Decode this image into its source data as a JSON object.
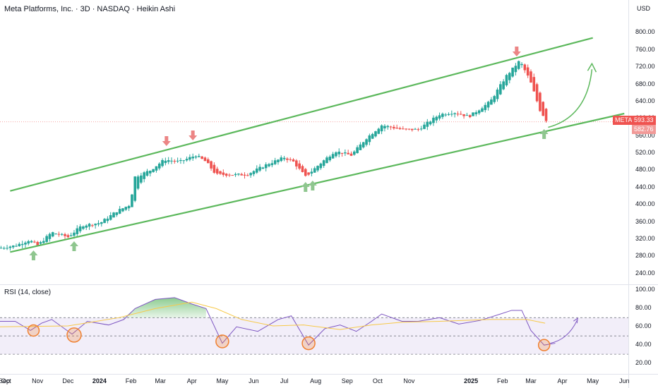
{
  "header": {
    "title": "Meta Platforms, Inc. · 3D · NASDAQ · Heikin Ashi",
    "currency": "USD",
    "rsi_title": "RSI (14, close)"
  },
  "price_tags": {
    "symbol": "META",
    "last": "593.33",
    "low": "582.76"
  },
  "colors": {
    "up": "#26a69a",
    "down": "#ef5350",
    "channel": "#5cb85c",
    "arrow_up": "#8fc68f",
    "arrow_down": "#ec8585",
    "rsi_line": "#7e57c2",
    "rsi_ma": "#f7c948",
    "circle": "#f08030",
    "tag": "#ef5350"
  },
  "icons": [
    "up-arrow-icon",
    "down-arrow-icon",
    "curved-arrow-icon"
  ],
  "chart_data": [
    {
      "type": "candlestick",
      "style": "Heikin Ashi",
      "x_range": [
        "2023-09-25",
        "2025-06-05"
      ],
      "ylim": [
        220,
        840
      ],
      "yticks": [
        "240.00",
        "280.00",
        "320.00",
        "360.00",
        "400.00",
        "440.00",
        "480.00",
        "520.00",
        "560.00",
        "600.00",
        "640.00",
        "680.00",
        "720.00",
        "760.00",
        "800.00"
      ],
      "xticks": [
        "Sep",
        "Oct",
        "Nov",
        "Dec",
        "2024",
        "Feb",
        "Mar",
        "Apr",
        "May",
        "Jun",
        "Jul",
        "Aug",
        "Sep",
        "Oct",
        "Nov",
        "2025",
        "Feb",
        "Mar",
        "Apr",
        "May",
        "Jun"
      ],
      "close_points": [
        [
          "2023-09-26",
          300
        ],
        [
          "2023-10-10",
          305
        ],
        [
          "2023-10-24",
          318
        ],
        [
          "2023-11-01",
          305
        ],
        [
          "2023-11-15",
          336
        ],
        [
          "2023-12-01",
          325
        ],
        [
          "2023-12-15",
          352
        ],
        [
          "2024-01-02",
          358
        ],
        [
          "2024-01-18",
          385
        ],
        [
          "2024-01-31",
          400
        ],
        [
          "2024-02-05",
          465
        ],
        [
          "2024-02-20",
          480
        ],
        [
          "2024-03-05",
          505
        ],
        [
          "2024-03-20",
          500
        ],
        [
          "2024-04-05",
          515
        ],
        [
          "2024-04-15",
          500
        ],
        [
          "2024-04-25",
          470
        ],
        [
          "2024-05-10",
          470
        ],
        [
          "2024-05-25",
          470
        ],
        [
          "2024-06-15",
          495
        ],
        [
          "2024-07-01",
          510
        ],
        [
          "2024-07-10",
          500
        ],
        [
          "2024-07-22",
          465
        ],
        [
          "2024-08-05",
          495
        ],
        [
          "2024-08-20",
          525
        ],
        [
          "2024-09-05",
          515
        ],
        [
          "2024-09-20",
          555
        ],
        [
          "2024-10-05",
          585
        ],
        [
          "2024-10-25",
          575
        ],
        [
          "2024-11-10",
          575
        ],
        [
          "2024-12-01",
          610
        ],
        [
          "2024-12-15",
          615
        ],
        [
          "2024-12-30",
          605
        ],
        [
          "2025-01-20",
          640
        ],
        [
          "2025-02-05",
          700
        ],
        [
          "2025-02-18",
          735
        ],
        [
          "2025-02-28",
          690
        ],
        [
          "2025-03-10",
          620
        ],
        [
          "2025-03-17",
          593
        ]
      ],
      "annotations": {
        "channel_upper": [
          [
            "2023-10-05",
            432
          ],
          [
            "2025-05-01",
            788
          ]
        ],
        "channel_lower": [
          [
            "2023-10-05",
            290
          ],
          [
            "2025-06-01",
            612
          ]
        ],
        "up_arrows": [
          "2023-10-28",
          "2023-12-07",
          "2024-07-22",
          "2024-07-29",
          "2025-03-14"
        ],
        "down_arrows": [
          "2024-03-07",
          "2024-04-02",
          "2025-02-15"
        ],
        "projection": "curved arrow up to ~720"
      }
    },
    {
      "type": "line",
      "title": "RSI (14, close)",
      "ylim": [
        10,
        105
      ],
      "yticks": [
        "20.00",
        "40.00",
        "60.00",
        "80.00",
        "100.00"
      ],
      "bands": {
        "upper": 70,
        "middle": 50,
        "lower": 30
      },
      "rsi": [
        [
          "2023-09-25",
          66
        ],
        [
          "2023-10-10",
          66
        ],
        [
          "2023-10-25",
          56
        ],
        [
          "2023-11-05",
          64
        ],
        [
          "2023-11-15",
          68
        ],
        [
          "2023-12-05",
          52
        ],
        [
          "2023-12-20",
          66
        ],
        [
          "2024-01-10",
          62
        ],
        [
          "2024-01-25",
          68
        ],
        [
          "2024-02-05",
          80
        ],
        [
          "2024-02-25",
          90
        ],
        [
          "2024-03-15",
          92
        ],
        [
          "2024-04-01",
          85
        ],
        [
          "2024-04-15",
          80
        ],
        [
          "2024-05-01",
          42
        ],
        [
          "2024-05-15",
          60
        ],
        [
          "2024-06-05",
          55
        ],
        [
          "2024-06-25",
          68
        ],
        [
          "2024-07-08",
          72
        ],
        [
          "2024-07-25",
          40
        ],
        [
          "2024-08-10",
          58
        ],
        [
          "2024-08-25",
          62
        ],
        [
          "2024-09-10",
          55
        ],
        [
          "2024-09-25",
          66
        ],
        [
          "2024-10-05",
          74
        ],
        [
          "2024-10-25",
          66
        ],
        [
          "2024-11-10",
          66
        ],
        [
          "2024-12-01",
          70
        ],
        [
          "2024-12-20",
          63
        ],
        [
          "2025-01-10",
          67
        ],
        [
          "2025-01-30",
          74
        ],
        [
          "2025-02-10",
          78
        ],
        [
          "2025-02-20",
          78
        ],
        [
          "2025-03-01",
          56
        ],
        [
          "2025-03-14",
          40
        ],
        [
          "2025-03-25",
          42
        ]
      ],
      "rsi_ma": [
        [
          "2023-09-25",
          60
        ],
        [
          "2023-12-01",
          61
        ],
        [
          "2024-01-20",
          70
        ],
        [
          "2024-02-25",
          80
        ],
        [
          "2024-04-01",
          87
        ],
        [
          "2024-04-25",
          80
        ],
        [
          "2024-05-20",
          68
        ],
        [
          "2024-06-20",
          61
        ],
        [
          "2024-07-20",
          62
        ],
        [
          "2024-08-25",
          57
        ],
        [
          "2024-09-25",
          62
        ],
        [
          "2024-10-25",
          65
        ],
        [
          "2024-12-01",
          66
        ],
        [
          "2025-01-20",
          68
        ],
        [
          "2025-02-25",
          68
        ],
        [
          "2025-03-15",
          64
        ]
      ],
      "annotations": {
        "circles": [
          "2023-10-28",
          "2023-12-07",
          "2024-05-01",
          "2024-07-25",
          "2025-03-14"
        ],
        "projection": "curved arrow up to ~70"
      }
    }
  ]
}
